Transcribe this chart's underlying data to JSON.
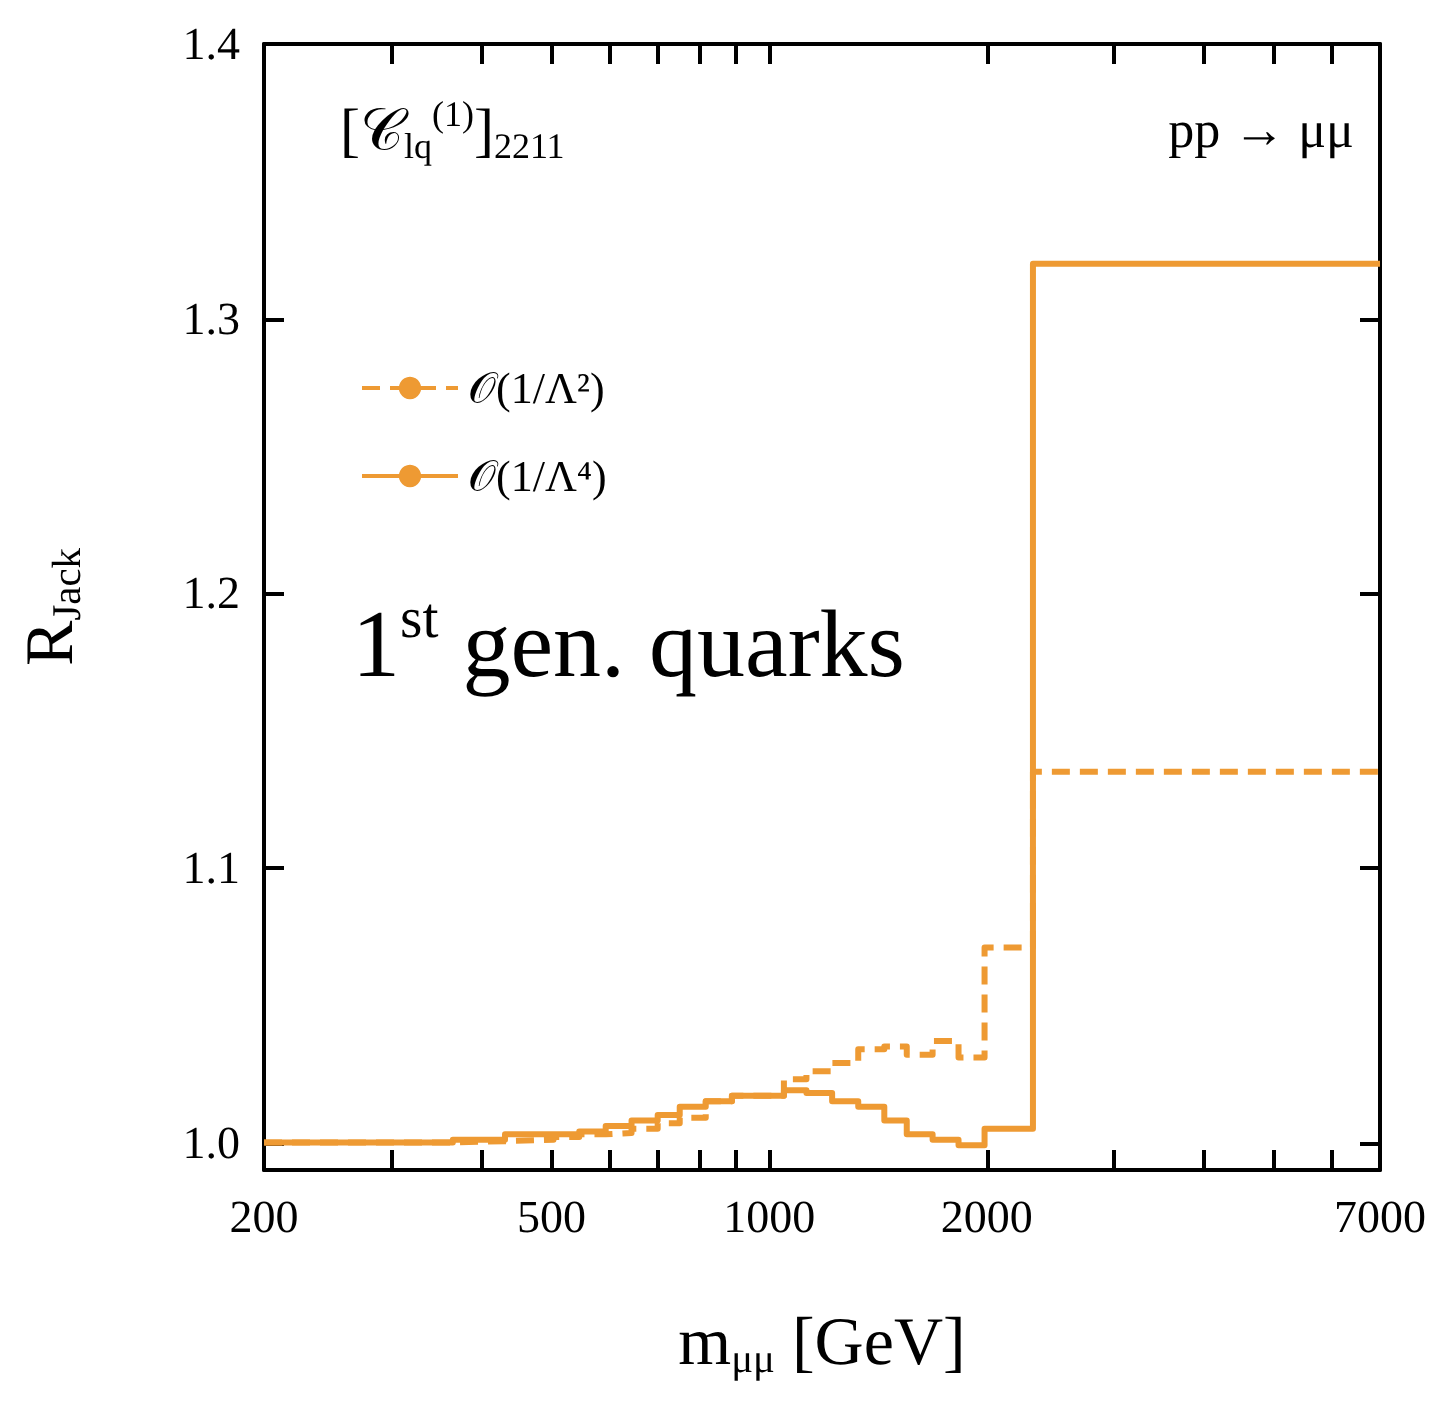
{
  "chart_data": {
    "type": "step",
    "xlabel": "m$_{μμ}$ [GeV]",
    "ylabel": "R$_{Jack}$",
    "annotations": [
      "[𝒞$_{lq}$$^{(1)}$]$_{2211}$",
      "pp → μμ",
      "1$^{st}$ gen. quarks"
    ],
    "x": [
      200,
      365,
      431,
      503,
      546,
      594,
      645,
      701,
      752,
      817,
      888,
      1048,
      1126,
      1222,
      1328,
      1443,
      1550,
      1683,
      1828,
      1986,
      2317,
      7000
    ],
    "series": [
      {
        "name": "𝒪(1/Λ²)",
        "color": "#ee9a33",
        "line_style": "dashed",
        "values": [
          1.0,
          1.0005,
          1.001,
          1.002,
          1.003,
          1.0035,
          1.005,
          1.007,
          1.009,
          1.015,
          1.017,
          1.023,
          1.026,
          1.029,
          1.034,
          1.035,
          1.032,
          1.037,
          1.031,
          1.071,
          1.135,
          1.135
        ]
      },
      {
        "name": "𝒪(1/Λ⁴)",
        "color": "#ee9a33",
        "line_style": "solid",
        "values": [
          1.0,
          1.001,
          1.003,
          1.003,
          1.004,
          1.006,
          1.008,
          1.01,
          1.013,
          1.015,
          1.017,
          1.019,
          1.018,
          1.015,
          1.013,
          1.008,
          1.003,
          1.001,
          0.999,
          1.005,
          1.32,
          1.32
        ]
      }
    ],
    "xlim": [
      200,
      7000
    ],
    "xticks": [
      200,
      {
        "value": 300,
        "label": null
      },
      {
        "value": 400,
        "label": null
      },
      500,
      {
        "value": 600,
        "label": null
      },
      {
        "value": 700,
        "label": null
      },
      {
        "value": 800,
        "label": null
      },
      {
        "value": 900,
        "label": null
      },
      1000,
      2000,
      {
        "value": 3000,
        "label": null
      },
      {
        "value": 4000,
        "label": null
      },
      {
        "value": 5000,
        "label": null
      },
      {
        "value": 6000,
        "label": null
      },
      7000
    ],
    "ylim": [
      0.99,
      1.4
    ],
    "yticks": [
      {
        "value": 1,
        "label": "1.0"
      },
      1.1,
      1.2,
      1.3,
      1.4
    ],
    "log": "x",
    "grid": false,
    "legend": "top left",
    "marker": "none"
  }
}
